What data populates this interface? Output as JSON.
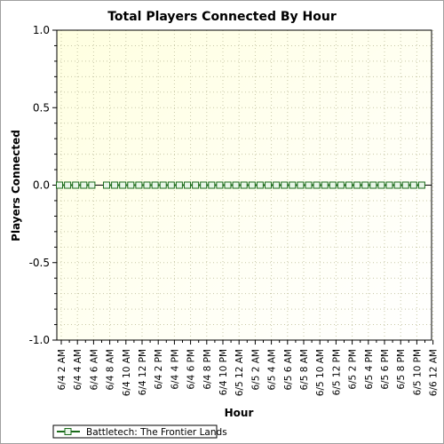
{
  "chart_data": {
    "type": "line",
    "title": "Total Players Connected By Hour",
    "xlabel": "Hour",
    "ylabel": "Players Connected",
    "ylim": [
      -1.0,
      1.0
    ],
    "yticks": [
      "1.0",
      "0.5",
      "0.0",
      "-0.5",
      "-1.0"
    ],
    "xtick_labels": [
      "6/4 2 AM",
      "6/4 4 AM",
      "6/4 6 AM",
      "6/4 8 AM",
      "6/4 10 AM",
      "6/4 12 PM",
      "6/4 2 PM",
      "6/4 4 PM",
      "6/4 6 PM",
      "6/4 8 PM",
      "6/4 10 PM",
      "6/5 12 AM",
      "6/5 2 AM",
      "6/5 4 AM",
      "6/5 6 AM",
      "6/5 8 AM",
      "6/5 10 AM",
      "6/5 12 PM",
      "6/5 2 PM",
      "6/5 4 PM",
      "6/5 6 PM",
      "6/5 8 PM",
      "6/5 10 PM",
      "6/6 12 AM"
    ],
    "grid": true,
    "legend_position": "bottom-left",
    "series": [
      {
        "name": "Battletech: The Frontier Lands",
        "color": "#1a6b1a",
        "marker": "square",
        "segments": [
          [
            0,
            0,
            0,
            0,
            0
          ],
          [
            0,
            0,
            0,
            0,
            0,
            0,
            0,
            0,
            0,
            0,
            0,
            0,
            0,
            0,
            0,
            0,
            0,
            0,
            0,
            0,
            0,
            0,
            0,
            0,
            0,
            0,
            0,
            0,
            0,
            0,
            0,
            0,
            0,
            0,
            0,
            0,
            0,
            0,
            0,
            0
          ]
        ]
      }
    ]
  },
  "colors": {
    "plot_bg_light": "#fffff0",
    "plot_bg_yellow": "#ffffc8",
    "zero_line": "#000000",
    "marker_fill": "#e8f5e8"
  }
}
